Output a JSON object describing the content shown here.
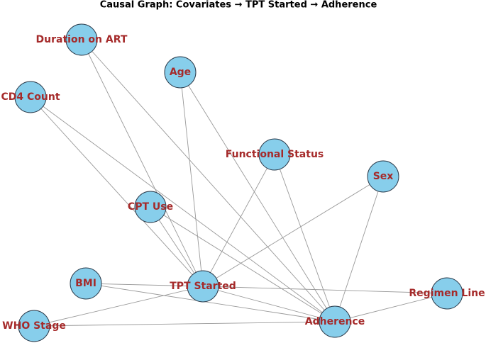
{
  "title": "Causal Graph: Covariates → TPT Started → Adherence",
  "nodes": [
    {
      "label": "Duration on ART"
    },
    {
      "label": "Age"
    },
    {
      "label": "CD4 Count"
    },
    {
      "label": "Functional Status"
    },
    {
      "label": "Sex"
    },
    {
      "label": "CPT Use"
    },
    {
      "label": "BMI"
    },
    {
      "label": "TPT Started"
    },
    {
      "label": "Regimen Line"
    },
    {
      "label": "WHO Stage"
    },
    {
      "label": "Adherence"
    }
  ]
}
